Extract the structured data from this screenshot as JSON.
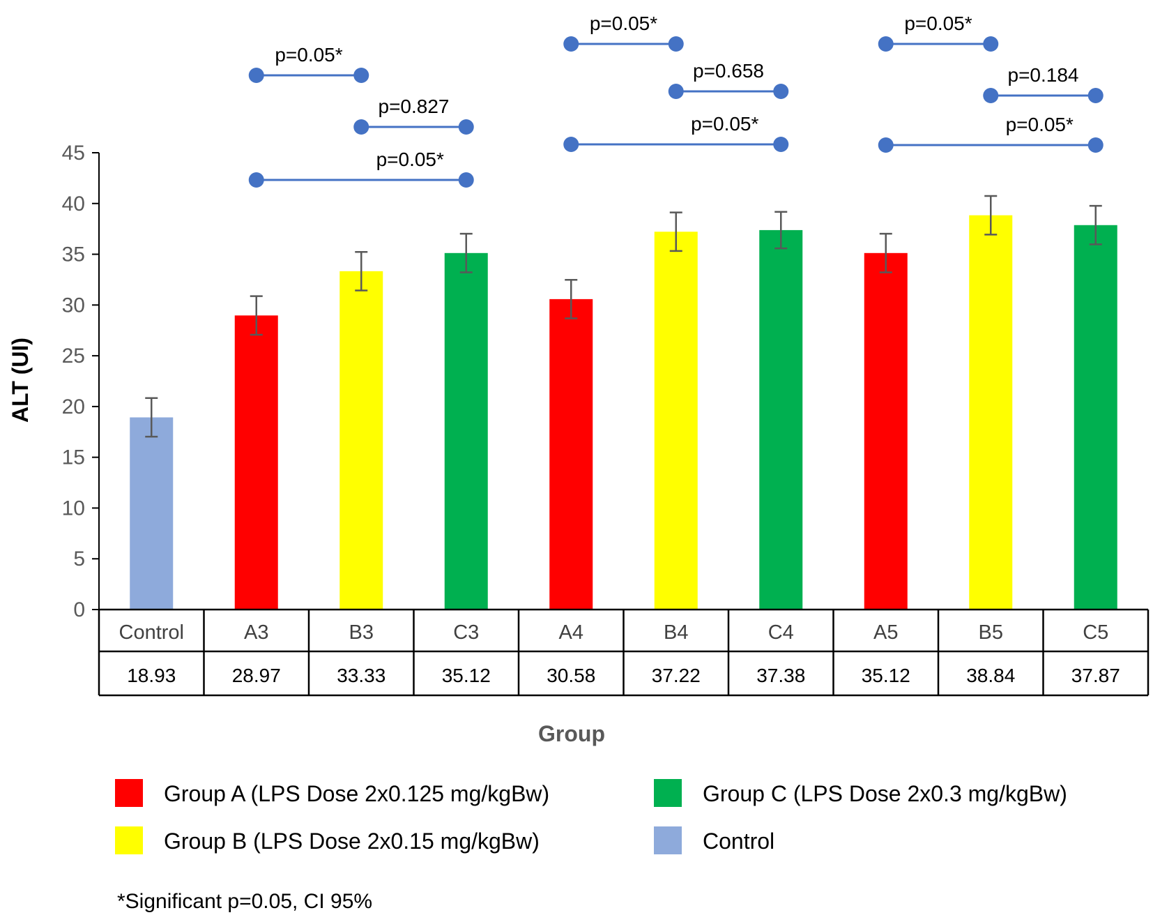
{
  "chart_data": {
    "type": "bar",
    "ylabel": "ALT (UI)",
    "xlabel": "Group",
    "ylim": [
      0,
      45
    ],
    "yticks": [
      0,
      5,
      10,
      15,
      20,
      25,
      30,
      35,
      40,
      45
    ],
    "categories": [
      "Control",
      "A3",
      "B3",
      "C3",
      "A4",
      "B4",
      "C4",
      "A5",
      "B5",
      "C5"
    ],
    "values": [
      18.93,
      28.97,
      33.33,
      35.12,
      30.58,
      37.22,
      37.38,
      35.12,
      38.84,
      37.87
    ],
    "value_labels": [
      "18.93",
      "28.97",
      "33.33",
      "35.12",
      "30.58",
      "37.22",
      "37.38",
      "35.12",
      "38.84",
      "37.87"
    ],
    "error_bars": [
      1.9,
      1.9,
      1.9,
      1.9,
      1.9,
      1.9,
      1.8,
      1.9,
      1.9,
      1.9
    ],
    "bar_groups": [
      "Control",
      "A",
      "B",
      "C",
      "A",
      "B",
      "C",
      "A",
      "B",
      "C"
    ],
    "colors": {
      "A": "#ff0000",
      "B": "#ffff00",
      "C": "#00b050",
      "Control": "#8eaadb",
      "marker": "#4472c4",
      "error": "#595959"
    },
    "comparisons": [
      {
        "from": "A3",
        "to": "B3",
        "label": "p=0.05*"
      },
      {
        "from": "B3",
        "to": "C3",
        "label": "p=0.827"
      },
      {
        "from": "A3",
        "to": "C3",
        "label": "p=0.05*"
      },
      {
        "from": "A4",
        "to": "B4",
        "label": "p=0.05*"
      },
      {
        "from": "B4",
        "to": "C4",
        "label": "p=0.658"
      },
      {
        "from": "A4",
        "to": "C4",
        "label": "p=0.05*"
      },
      {
        "from": "A5",
        "to": "B5",
        "label": "p=0.05*"
      },
      {
        "from": "B5",
        "to": "C5",
        "label": "p=0.184"
      },
      {
        "from": "A5",
        "to": "C5",
        "label": "p=0.05*"
      }
    ],
    "legend": [
      {
        "key": "A",
        "label": "Group A (LPS Dose 2x0.125 mg/kgBw)"
      },
      {
        "key": "C",
        "label": "Group C (LPS Dose 2x0.3 mg/kgBw)"
      },
      {
        "key": "B",
        "label": "Group  B (LPS Dose 2x0.15 mg/kgBw)"
      },
      {
        "key": "Control",
        "label": "Control"
      }
    ],
    "legend_position": "bottom",
    "grid": false,
    "footnote": "*Significant p=0.05, CI 95%"
  }
}
